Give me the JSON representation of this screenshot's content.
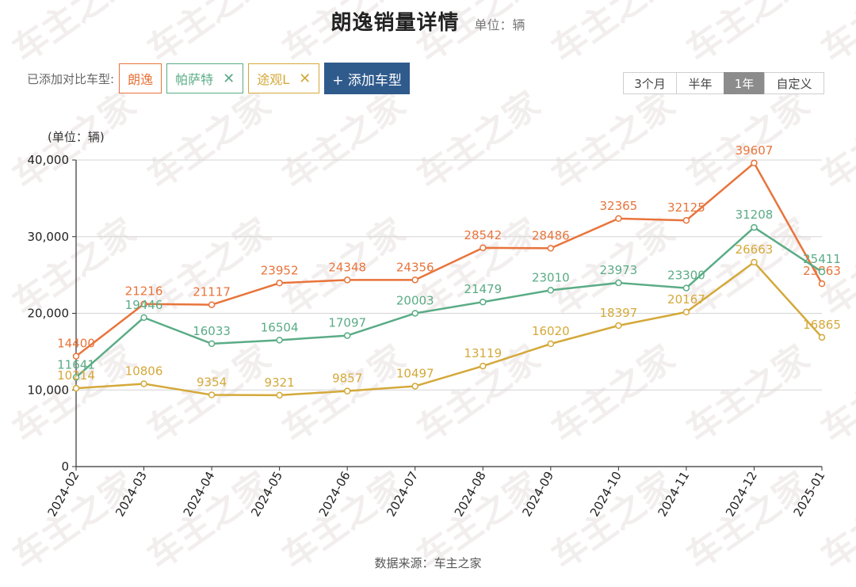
{
  "page": {
    "title": "朗逸销量详情",
    "unit": "单位：辆",
    "source": "数据来源：车主之家",
    "watermark_text": "车主之家"
  },
  "compare": {
    "label": "已添加对比车型:",
    "tags": [
      {
        "name": "朗逸",
        "color": "#e8743b",
        "removable": false
      },
      {
        "name": "帕萨特",
        "color": "#5aac86",
        "removable": true
      },
      {
        "name": "途观L",
        "color": "#d4a93a",
        "removable": true
      }
    ],
    "add_button": "+ 添加车型"
  },
  "periods": {
    "options": [
      "3个月",
      "半年",
      "1年",
      "自定义"
    ],
    "active": "1年"
  },
  "chart_data": {
    "type": "line",
    "unit_label": "(单位：辆)",
    "categories": [
      "2024-02",
      "2024-03",
      "2024-04",
      "2024-05",
      "2024-06",
      "2024-07",
      "2024-08",
      "2024-09",
      "2024-10",
      "2024-11",
      "2024-12",
      "2025-01"
    ],
    "ylim": [
      0,
      40000
    ],
    "yticks": [
      0,
      10000,
      20000,
      30000,
      40000
    ],
    "ytick_labels": [
      "0",
      "10,000",
      "20,000",
      "30,000",
      "40,000"
    ],
    "grid": true,
    "series": [
      {
        "name": "朗逸",
        "color": "#e8743b",
        "values": [
          14400,
          21216,
          21117,
          23952,
          24348,
          24356,
          28542,
          28486,
          32365,
          32125,
          39607,
          23863
        ]
      },
      {
        "name": "帕萨特",
        "color": "#5aac86",
        "values": [
          11641,
          19446,
          16033,
          16504,
          17097,
          20003,
          21479,
          23010,
          23973,
          23300,
          31208,
          25411
        ]
      },
      {
        "name": "途观L",
        "color": "#d4a93a",
        "values": [
          10214,
          10806,
          9354,
          9321,
          9857,
          10497,
          13119,
          16020,
          18397,
          20167,
          26663,
          16865
        ]
      }
    ]
  }
}
